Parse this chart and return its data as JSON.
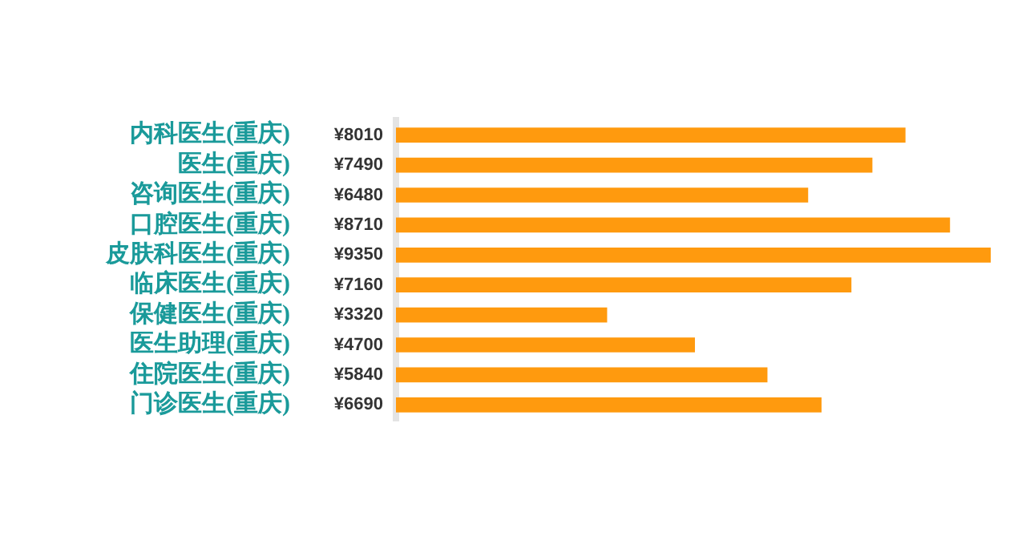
{
  "chart_data": {
    "type": "bar",
    "orientation": "horizontal",
    "categories": [
      "内科医生(重庆)",
      "医生(重庆)",
      "咨询医生(重庆)",
      "口腔医生(重庆)",
      "皮肤科医生(重庆)",
      "临床医生(重庆)",
      "保健医生(重庆)",
      "医生助理(重庆)",
      "住院医生(重庆)",
      "门诊医生(重庆)"
    ],
    "values": [
      8010,
      7490,
      6480,
      8710,
      9350,
      7160,
      3320,
      4700,
      5840,
      6690
    ],
    "value_labels": [
      "¥8010",
      "¥7490",
      "¥6480",
      "¥8710",
      "¥9350",
      "¥7160",
      "¥3320",
      "¥4700",
      "¥5840",
      "¥6690"
    ],
    "color": "#ff9a0e",
    "xlim": [
      0,
      9350
    ],
    "legend": false
  }
}
